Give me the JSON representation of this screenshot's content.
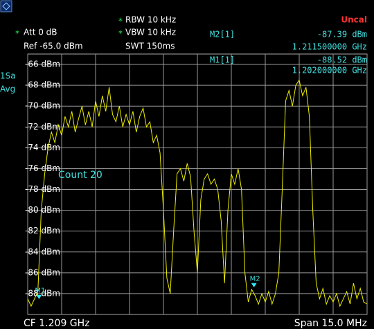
{
  "chart_data": {
    "type": "line",
    "color": "#f0f000",
    "marker_color": "#30e8ff",
    "status": "Uncal",
    "settings": [
      {
        "flag": "*",
        "text": "RBW 10 kHz"
      },
      {
        "flag": "*",
        "text": "VBW 10 kHz"
      },
      {
        "text": "SWT 150ms"
      },
      {
        "flag": "*",
        "text": "Att  0 dB"
      },
      {
        "text": "Ref -65.0 dBm"
      }
    ],
    "trace_mode": [
      "1Sa",
      "Avg"
    ],
    "count": "Count 20",
    "center": "CF 1.209 GHz",
    "span": "Span 15.0 MHz",
    "xlim": [
      1.2015,
      1.2165
    ],
    "xticks": [
      1.2015,
      1.203,
      1.2045,
      1.206,
      1.2075,
      1.209,
      1.2105,
      1.212,
      1.2135,
      1.215,
      1.2165
    ],
    "ylim": [
      -90,
      -65
    ],
    "yticks": [
      {
        "value": -66,
        "label": "-66 dBm"
      },
      {
        "value": -68,
        "label": "-68 dBm"
      },
      {
        "value": -70,
        "label": "-70 dBm"
      },
      {
        "value": -72,
        "label": "-72 dBm"
      },
      {
        "value": -74,
        "label": "-74 dBm"
      },
      {
        "value": -76,
        "label": "-76 dBm"
      },
      {
        "value": -78,
        "label": "-78 dBm"
      },
      {
        "value": -80,
        "label": "-80 dBm"
      },
      {
        "value": -82,
        "label": "-82 dBm"
      },
      {
        "value": -84,
        "label": "-84 dBm"
      },
      {
        "value": -86,
        "label": "-86 dBm"
      },
      {
        "value": -88,
        "label": "-88 dBm"
      }
    ],
    "grid": true,
    "x": [
      1.2015,
      1.20165,
      1.2018,
      1.20195,
      1.2021,
      1.20225,
      1.2024,
      1.20255,
      1.2027,
      1.20285,
      1.203,
      1.20315,
      1.2033,
      1.20345,
      1.2036,
      1.20375,
      1.2039,
      1.20405,
      1.2042,
      1.20435,
      1.2045,
      1.20465,
      1.2048,
      1.20495,
      1.2051,
      1.20525,
      1.2054,
      1.20555,
      1.2057,
      1.20585,
      1.206,
      1.20615,
      1.2063,
      1.20645,
      1.2066,
      1.20675,
      1.2069,
      1.20705,
      1.2072,
      1.20735,
      1.2075,
      1.20765,
      1.2078,
      1.20795,
      1.2081,
      1.20825,
      1.2084,
      1.20855,
      1.2087,
      1.20885,
      1.209,
      1.20915,
      1.2093,
      1.20945,
      1.2096,
      1.20975,
      1.2099,
      1.21005,
      1.2102,
      1.21035,
      1.2105,
      1.21065,
      1.2108,
      1.21095,
      1.2111,
      1.21125,
      1.2114,
      1.21155,
      1.2117,
      1.21185,
      1.212,
      1.21215,
      1.2123,
      1.21245,
      1.2126,
      1.21275,
      1.2129,
      1.21305,
      1.2132,
      1.21335,
      1.2135,
      1.21365,
      1.2138,
      1.21395,
      1.2141,
      1.21425,
      1.2144,
      1.21455,
      1.2147,
      1.21485,
      1.215,
      1.21515,
      1.2153,
      1.21545,
      1.2156,
      1.21575,
      1.2159,
      1.21605,
      1.2162,
      1.21635,
      1.2165
    ],
    "values": [
      -88.5,
      -89.2,
      -88.5,
      -87.8,
      -80,
      -76.5,
      -74,
      -72.5,
      -73.5,
      -71.8,
      -72.8,
      -71,
      -72,
      -70.5,
      -72.5,
      -71.2,
      -70,
      -71.8,
      -70.5,
      -72,
      -69.5,
      -71,
      -69,
      -70.5,
      -68.2,
      -70.8,
      -71.5,
      -70,
      -72,
      -70.8,
      -71.8,
      -70.5,
      -72.5,
      -71,
      -70.2,
      -72,
      -71.5,
      -73.5,
      -72.8,
      -74.5,
      -80,
      -86.5,
      -88,
      -82,
      -76.5,
      -76,
      -77.2,
      -75.5,
      -76.8,
      -82,
      -86,
      -79,
      -77,
      -76.5,
      -77.5,
      -77,
      -78,
      -81,
      -87,
      -80,
      -76.5,
      -77.5,
      -76,
      -78,
      -86,
      -88.8,
      -87.6,
      -88.2,
      -89,
      -88,
      -88.8,
      -87.8,
      -89,
      -88,
      -86,
      -78,
      -69.5,
      -68.5,
      -70,
      -68,
      -67.5,
      -69,
      -68.2,
      -71,
      -80,
      -87,
      -88.5,
      -87.5,
      -89,
      -88.2,
      -88.8,
      -88,
      -89.2,
      -88.5,
      -87.8,
      -89,
      -87,
      -88.5,
      -87.5,
      -88.8,
      -89
    ],
    "markers": [
      {
        "name": "M2[1]",
        "label": "M2",
        "x": 1.2115,
        "x_label": "1.211500000 GHz",
        "value": -87.39,
        "value_label": "-87.39 dBm"
      },
      {
        "name": "M1[1]",
        "label": "M1",
        "x": 1.202,
        "x_label": "1.202000000 GHz",
        "value": -88.52,
        "value_label": "-88.52 dBm"
      }
    ]
  }
}
